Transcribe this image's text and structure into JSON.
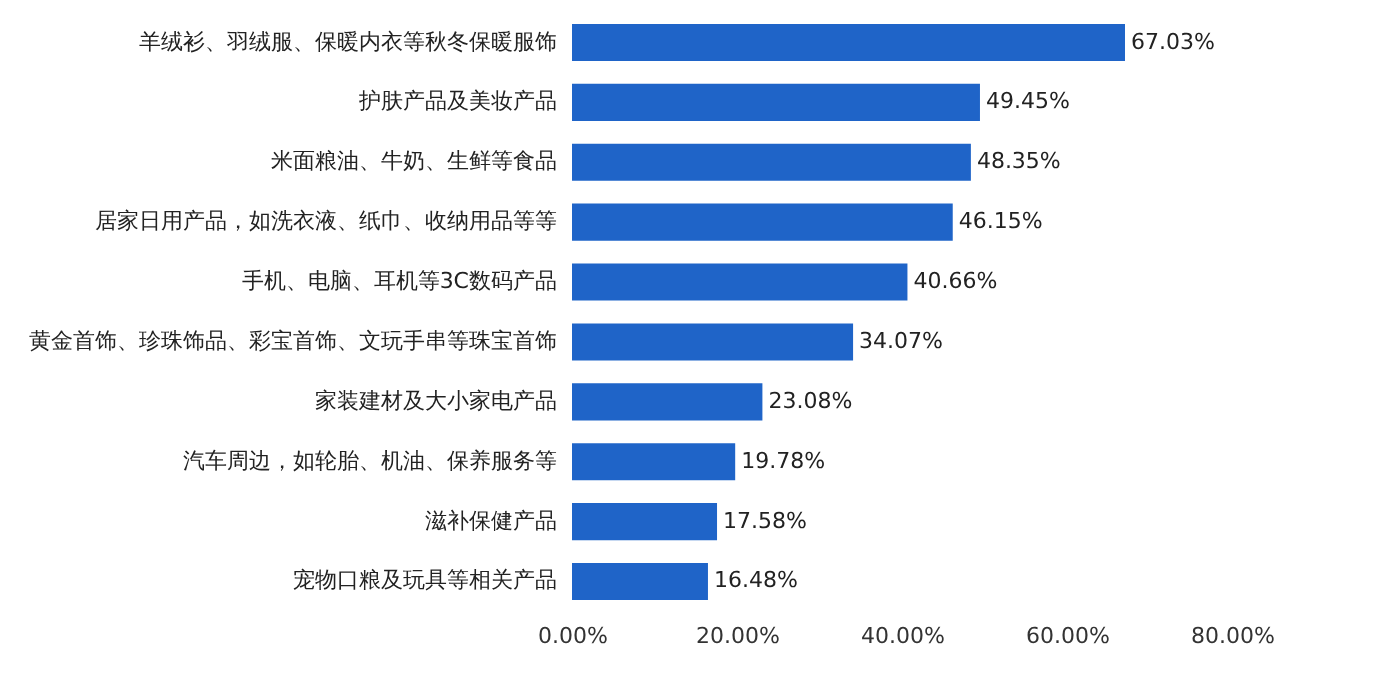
{
  "chart_data": {
    "type": "bar",
    "orientation": "horizontal",
    "categories": [
      "羊绒衫、羽绒服、保暖内衣等秋冬保暖服饰",
      "护肤产品及美妆产品",
      "米面粮油、牛奶、生鲜等食品",
      "居家日用产品，如洗衣液、纸巾、收纳用品等等",
      "手机、电脑、耳机等3C数码产品",
      "黄金首饰、珍珠饰品、彩宝首饰、文玩手串等珠宝首饰",
      "家装建材及大小家电产品",
      "汽车周边，如轮胎、机油、保养服务等",
      "滋补保健产品",
      "宠物口粮及玩具等相关产品"
    ],
    "values": [
      67.03,
      49.45,
      48.35,
      46.15,
      40.66,
      34.07,
      23.08,
      19.78,
      17.58,
      16.48
    ],
    "value_labels": [
      "67.03%",
      "49.45%",
      "48.35%",
      "46.15%",
      "40.66%",
      "34.07%",
      "23.08%",
      "19.78%",
      "17.58%",
      "16.48%"
    ],
    "color": "#1f64c8",
    "xlim": [
      0,
      80
    ],
    "xticks": [
      {
        "value": 0,
        "label": "0.00%"
      },
      {
        "value": 20,
        "label": "20.00%"
      },
      {
        "value": 40,
        "label": "40.00%"
      },
      {
        "value": 60,
        "label": "60.00%"
      },
      {
        "value": 80,
        "label": "80.00%"
      }
    ],
    "grid": false
  }
}
